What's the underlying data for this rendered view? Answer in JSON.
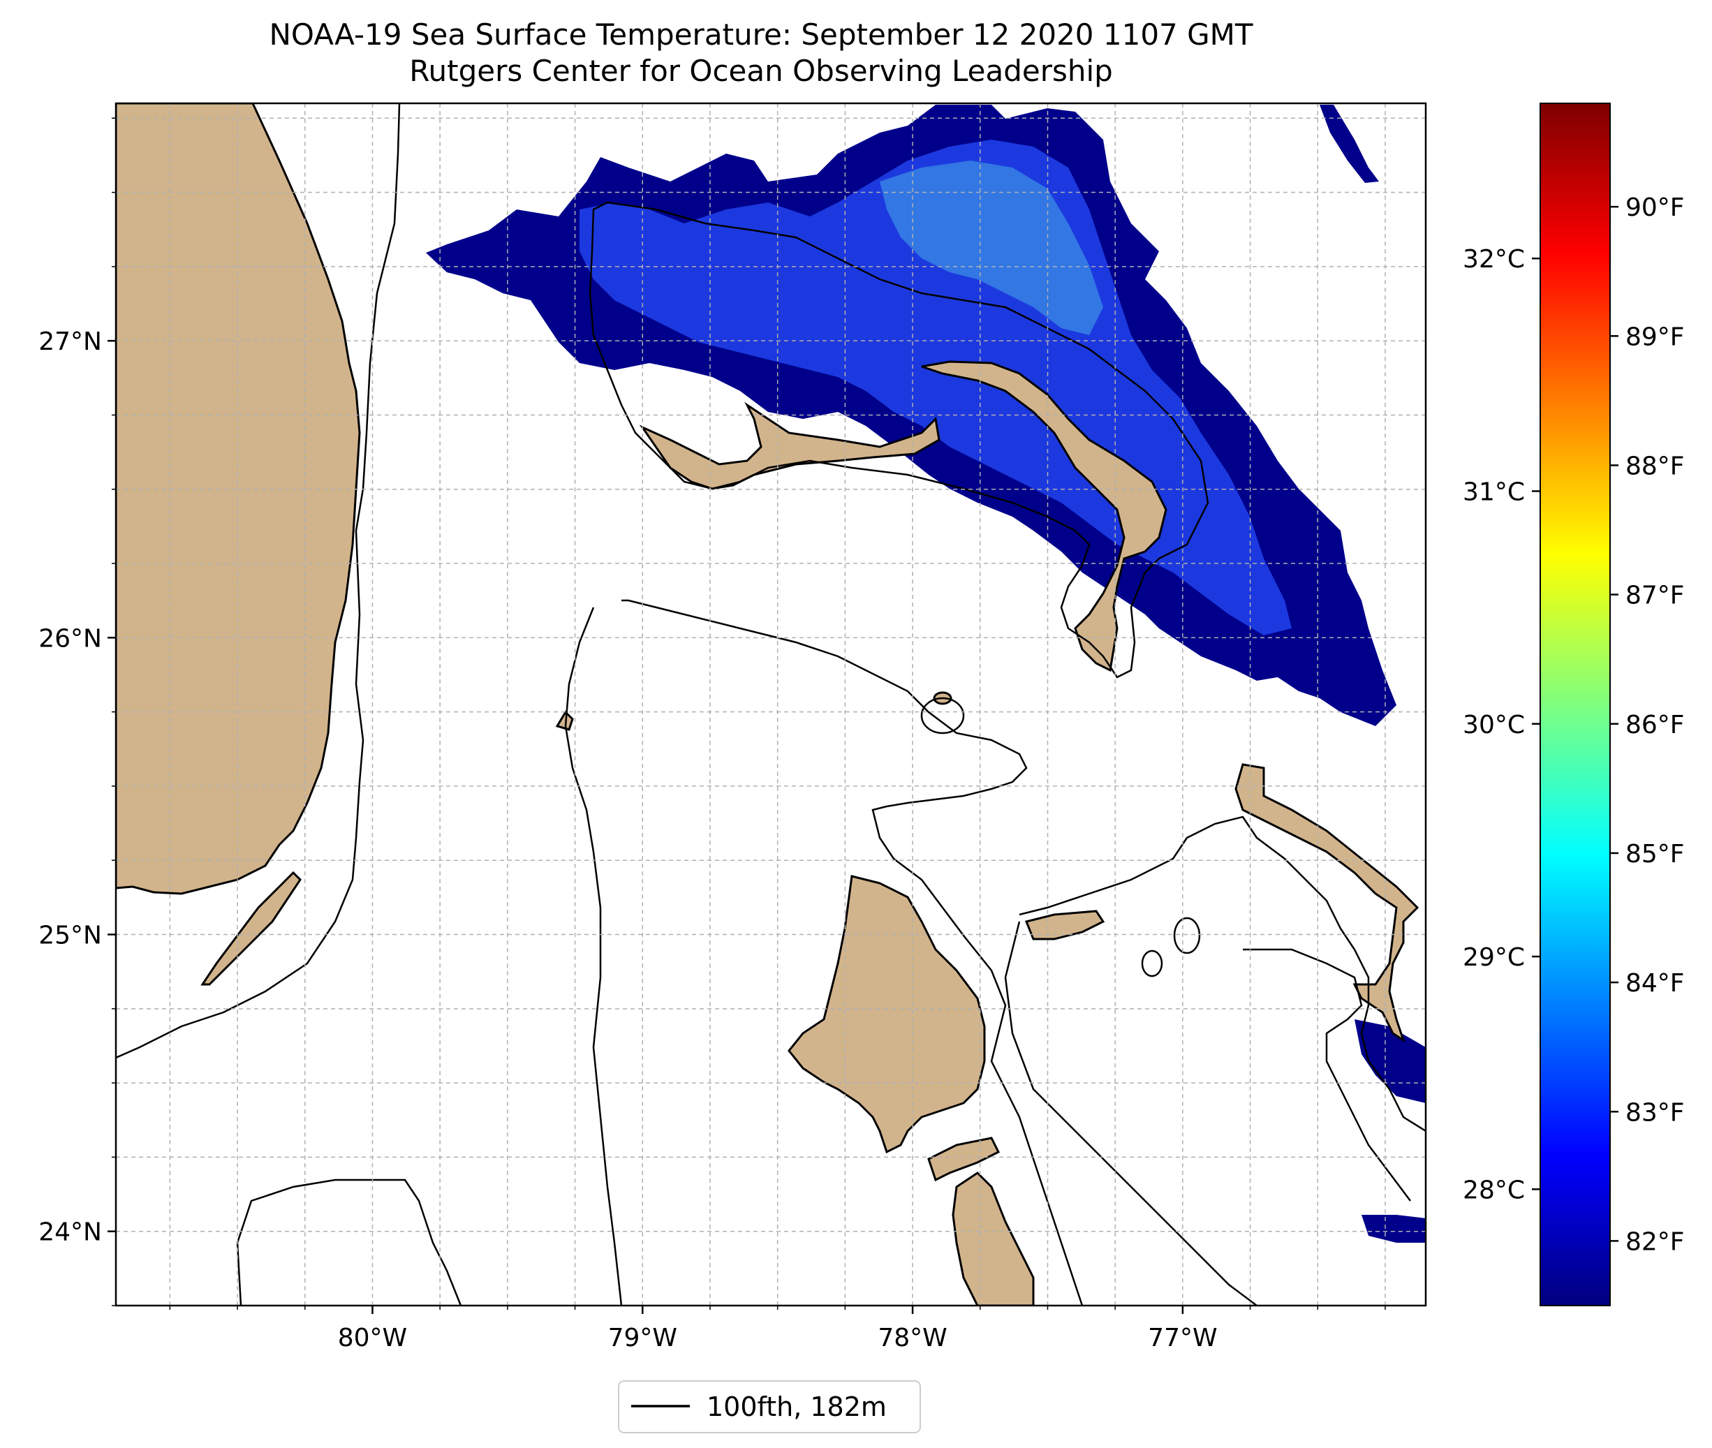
{
  "title": {
    "line1": "NOAA-19 Sea Surface Temperature: September 12 2020 1107 GMT",
    "line2": "Rutgers Center for Ocean Observing Leadership"
  },
  "axes": {
    "lat_ticks": [
      {
        "value": 27,
        "label": "27°N"
      },
      {
        "value": 26,
        "label": "26°N"
      },
      {
        "value": 25,
        "label": "25°N"
      },
      {
        "value": 24,
        "label": "24°N"
      }
    ],
    "lon_ticks": [
      {
        "value": -80,
        "label": "80°W"
      },
      {
        "value": -79,
        "label": "79°W"
      },
      {
        "value": -78,
        "label": "78°W"
      },
      {
        "value": -77,
        "label": "77°W"
      }
    ],
    "lon_range": [
      -80.95,
      -76.1
    ],
    "lat_range": [
      23.75,
      27.8
    ]
  },
  "colorbar": {
    "celsius_ticks": [
      {
        "value": 28,
        "label": "28°C"
      },
      {
        "value": 29,
        "label": "29°C"
      },
      {
        "value": 30,
        "label": "30°C"
      },
      {
        "value": 31,
        "label": "31°C"
      },
      {
        "value": 32,
        "label": "32°C"
      }
    ],
    "fahrenheit_ticks": [
      {
        "value": 82,
        "label": "82°F"
      },
      {
        "value": 83,
        "label": "83°F"
      },
      {
        "value": 84,
        "label": "84°F"
      },
      {
        "value": 85,
        "label": "85°F"
      },
      {
        "value": 86,
        "label": "86°F"
      },
      {
        "value": 87,
        "label": "87°F"
      },
      {
        "value": 88,
        "label": "88°F"
      },
      {
        "value": 89,
        "label": "89°F"
      },
      {
        "value": 90,
        "label": "90°F"
      }
    ],
    "range_fahrenheit": [
      81.5,
      90.8
    ],
    "colormap": "jet",
    "stops": [
      "#00007f",
      "#0000ff",
      "#007fff",
      "#00ffff",
      "#7fff7f",
      "#ffff00",
      "#ff7f00",
      "#ff0000",
      "#7f0000"
    ]
  },
  "legend": {
    "label": "100fth, 182m"
  },
  "colors": {
    "land": "#d2b48c",
    "grid": "#b0b0b0",
    "sst_cold": "#00008b",
    "sst_mid": "#1f3fe8",
    "sst_warm": "#3a8ce6",
    "lake_edge": "#9fb8e0"
  }
}
